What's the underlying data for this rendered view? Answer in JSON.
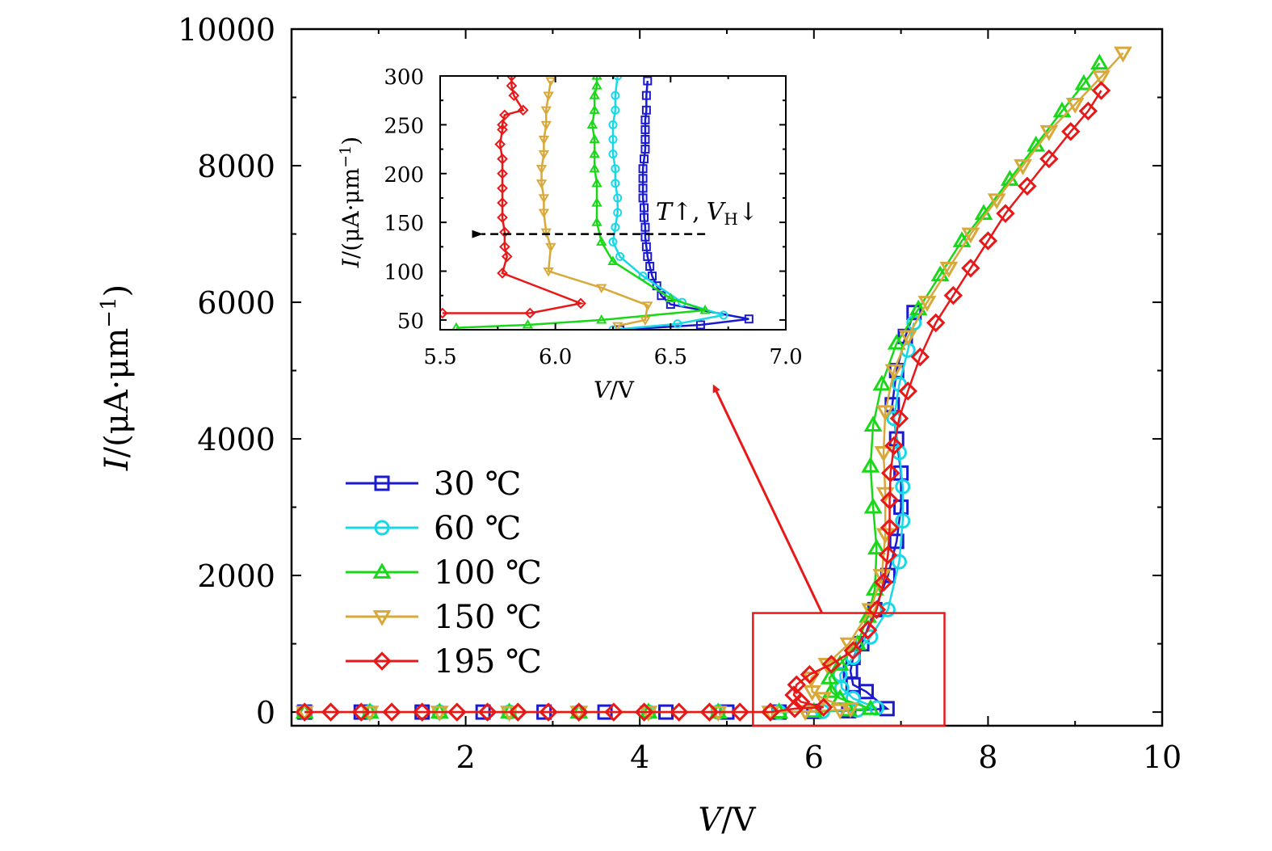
{
  "chart_data": [
    {
      "type": "line",
      "panel": "main",
      "xlabel_var": "V",
      "xlabel_unit": "/V",
      "ylabel_var": "I",
      "ylabel_unit": "/(μA·μm",
      "ylabel_sup": "−1",
      "ylabel_close": ")",
      "xlim": [
        0,
        10
      ],
      "ylim": [
        -200,
        10000
      ],
      "xticks": [
        2,
        4,
        6,
        8,
        10
      ],
      "xtick_labels": [
        "2",
        "4",
        "6",
        "8",
        "10"
      ],
      "yticks": [
        0,
        2000,
        4000,
        6000,
        8000,
        10000
      ],
      "ytick_labels": [
        "0",
        "2000",
        "4000",
        "6000",
        "8000",
        "10000"
      ],
      "legend_position": "lower-left",
      "series": [
        {
          "name": "30 ℃",
          "color": "#1a1ad0",
          "marker": "square",
          "x": [
            0.15,
            0.8,
            1.5,
            2.2,
            2.9,
            3.6,
            4.3,
            5.0,
            5.6,
            6.0,
            6.4,
            6.84,
            6.6,
            6.45,
            6.42,
            6.45,
            6.55,
            6.7,
            6.85,
            6.95,
            7.0,
            7.0,
            6.95,
            6.9,
            6.95,
            7.05,
            7.15
          ],
          "y": [
            0,
            0,
            0,
            0,
            0,
            0,
            0,
            0,
            0,
            10,
            20,
            50,
            300,
            400,
            600,
            800,
            1000,
            1500,
            2000,
            2500,
            3000,
            3500,
            4000,
            4500,
            5000,
            5500,
            5850
          ]
        },
        {
          "name": "60 ℃",
          "color": "#18d8e8",
          "marker": "circle",
          "x": [
            0.15,
            0.9,
            1.7,
            2.5,
            3.3,
            4.1,
            4.9,
            5.6,
            6.1,
            6.5,
            6.72,
            6.45,
            6.32,
            6.3,
            6.45,
            6.65,
            6.85,
            6.98,
            7.02,
            7.02,
            6.98,
            6.92,
            6.98,
            7.08,
            7.15
          ],
          "y": [
            0,
            0,
            0,
            0,
            0,
            0,
            0,
            0,
            10,
            30,
            60,
            200,
            350,
            550,
            800,
            1100,
            1500,
            2200,
            2800,
            3300,
            3800,
            4300,
            4800,
            5300,
            5700
          ]
        },
        {
          "name": "100 ℃",
          "color": "#18d818",
          "marker": "triangle-up",
          "x": [
            0.15,
            0.9,
            1.7,
            2.5,
            3.3,
            4.1,
            4.9,
            5.6,
            6.0,
            6.4,
            6.65,
            6.3,
            6.2,
            6.18,
            6.3,
            6.5,
            6.62,
            6.7,
            6.72,
            6.68,
            6.65,
            6.68,
            6.78,
            6.95,
            7.2,
            7.45,
            7.7,
            7.95,
            8.25,
            8.55,
            8.85,
            9.1,
            9.28
          ],
          "y": [
            0,
            0,
            0,
            0,
            0,
            0,
            0,
            0,
            10,
            30,
            50,
            200,
            300,
            500,
            700,
            1000,
            1400,
            1800,
            2400,
            3000,
            3600,
            4200,
            4800,
            5400,
            5900,
            6400,
            6900,
            7300,
            7800,
            8300,
            8800,
            9200,
            9500
          ]
        },
        {
          "name": "150 ℃",
          "color": "#d8a838",
          "marker": "triangle-down",
          "x": [
            0.15,
            0.9,
            1.7,
            2.5,
            3.3,
            4.1,
            4.9,
            5.5,
            5.9,
            6.3,
            6.42,
            6.1,
            5.98,
            5.97,
            6.15,
            6.4,
            6.65,
            6.78,
            6.82,
            6.82,
            6.8,
            6.82,
            6.92,
            7.08,
            7.3,
            7.55,
            7.8,
            8.1,
            8.4,
            8.7,
            9.0,
            9.3,
            9.55
          ],
          "y": [
            0,
            0,
            0,
            0,
            0,
            0,
            0,
            0,
            10,
            30,
            50,
            200,
            300,
            500,
            700,
            1000,
            1500,
            2000,
            2600,
            3200,
            3800,
            4400,
            5000,
            5500,
            6000,
            6500,
            7000,
            7500,
            8000,
            8500,
            8900,
            9300,
            9650
          ]
        },
        {
          "name": "195 ℃",
          "color": "#e81818",
          "marker": "diamond",
          "x": [
            0.15,
            0.45,
            0.8,
            1.15,
            1.5,
            1.9,
            2.25,
            2.6,
            2.95,
            3.3,
            3.7,
            4.05,
            4.45,
            4.8,
            5.15,
            5.5,
            5.78,
            6.11,
            5.85,
            5.77,
            5.8,
            5.95,
            6.2,
            6.45,
            6.62,
            6.72,
            6.8,
            6.85,
            6.87,
            6.87,
            6.88,
            6.92,
            6.98,
            7.08,
            7.22,
            7.4,
            7.6,
            7.8,
            8.0,
            8.2,
            8.45,
            8.7,
            8.95,
            9.15,
            9.3
          ],
          "y": [
            0,
            0,
            0,
            0,
            0,
            0,
            0,
            0,
            0,
            0,
            0,
            0,
            0,
            0,
            0,
            0,
            50,
            70,
            150,
            250,
            400,
            550,
            700,
            900,
            1200,
            1500,
            1900,
            2300,
            2700,
            3100,
            3500,
            3900,
            4300,
            4700,
            5200,
            5700,
            6100,
            6500,
            6900,
            7300,
            7700,
            8100,
            8500,
            8800,
            9100
          ]
        }
      ],
      "highlight_box": {
        "xmin": 5.3,
        "xmax": 7.5,
        "ymin": -200,
        "ymax": 1450,
        "color": "#e81818"
      }
    },
    {
      "type": "line",
      "panel": "inset",
      "xlabel_var": "V",
      "xlabel_unit": "/V",
      "ylabel_var": "I",
      "ylabel_unit": "/(μA·μm",
      "ylabel_sup": "−1",
      "ylabel_close": ")",
      "xlim": [
        5.5,
        7.0
      ],
      "ylim": [
        40,
        300
      ],
      "xticks": [
        5.5,
        6.0,
        6.5,
        7.0
      ],
      "xtick_labels": [
        "5.5",
        "6.0",
        "6.5",
        "7.0"
      ],
      "yticks": [
        50,
        100,
        150,
        200,
        250,
        300
      ],
      "ytick_labels": [
        "50",
        "100",
        "150",
        "200",
        "250",
        "300"
      ],
      "annotation": {
        "var": "T",
        "arrow_up": "↑,",
        "var2": "V",
        "sub": "H",
        "arrow_down": "↓"
      },
      "series": [
        {
          "name": "30 ℃",
          "color": "#1a1ad0",
          "marker": "square",
          "x": [
            6.28,
            6.63,
            6.84,
            6.5,
            6.46,
            6.44,
            6.42,
            6.41,
            6.4,
            6.395,
            6.39,
            6.39,
            6.385,
            6.385,
            6.38,
            6.38,
            6.38,
            6.38,
            6.385,
            6.39,
            6.39,
            6.39,
            6.39,
            6.395,
            6.395,
            6.4
          ],
          "y": [
            40,
            45,
            51,
            66,
            75,
            85,
            95,
            105,
            115,
            125,
            135,
            145,
            155,
            165,
            175,
            185,
            195,
            205,
            215,
            225,
            235,
            245,
            255,
            265,
            280,
            295
          ]
        },
        {
          "name": "60 ℃",
          "color": "#18d8e8",
          "marker": "circle",
          "x": [
            6.25,
            6.53,
            6.73,
            6.55,
            6.38,
            6.28,
            6.25,
            6.26,
            6.27,
            6.27,
            6.26,
            6.26,
            6.25,
            6.25,
            6.25,
            6.26,
            6.26,
            6.27
          ],
          "y": [
            40,
            46,
            55,
            68,
            95,
            115,
            130,
            145,
            160,
            175,
            190,
            205,
            220,
            235,
            250,
            265,
            280,
            300
          ]
        },
        {
          "name": "100 ℃",
          "color": "#18d818",
          "marker": "triangle-up",
          "x": [
            5.57,
            5.88,
            6.2,
            6.65,
            6.5,
            6.25,
            6.2,
            6.18,
            6.18,
            6.18,
            6.17,
            6.17,
            6.17,
            6.16,
            6.17,
            6.17,
            6.18,
            6.18
          ],
          "y": [
            42,
            45,
            50,
            60,
            72,
            110,
            130,
            150,
            170,
            190,
            205,
            220,
            235,
            250,
            265,
            280,
            290,
            300
          ]
        },
        {
          "name": "150 ℃",
          "color": "#d8a838",
          "marker": "triangle-down",
          "x": [
            6.27,
            6.39,
            6.4,
            6.2,
            5.97,
            5.98,
            5.96,
            5.95,
            5.95,
            5.94,
            5.94,
            5.95,
            5.95,
            5.96,
            5.96,
            5.97,
            5.98
          ],
          "y": [
            44,
            50,
            65,
            83,
            100,
            125,
            140,
            160,
            175,
            190,
            205,
            220,
            235,
            250,
            265,
            280,
            295
          ]
        },
        {
          "name": "195 ℃",
          "color": "#e81818",
          "marker": "diamond",
          "x": [
            5.51,
            5.89,
            6.11,
            5.77,
            5.79,
            5.78,
            5.78,
            5.77,
            5.77,
            5.77,
            5.77,
            5.77,
            5.76,
            5.77,
            5.77,
            5.78,
            5.86,
            5.82,
            5.81,
            5.81
          ],
          "y": [
            57,
            57,
            67,
            98,
            115,
            125,
            140,
            155,
            170,
            185,
            200,
            215,
            230,
            245,
            250,
            260,
            265,
            280,
            290,
            300
          ]
        }
      ],
      "guide_arrow": {
        "from_x": 6.65,
        "to_x": 5.68,
        "y": 138
      }
    }
  ]
}
